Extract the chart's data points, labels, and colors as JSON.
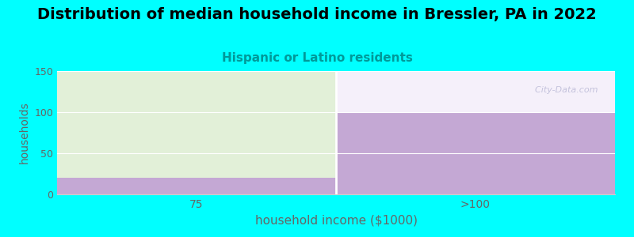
{
  "title": "Distribution of median household income in Bressler, PA in 2022",
  "subtitle": "Hispanic or Latino residents",
  "xlabel": "household income ($1000)",
  "ylabel": "households",
  "categories": [
    "75",
    ">100"
  ],
  "values": [
    20,
    100
  ],
  "bar_max": 150,
  "ylim": [
    0,
    150
  ],
  "yticks": [
    0,
    50,
    100,
    150
  ],
  "background_color": "#00FFFF",
  "plot_bg_color": "#FFFFFF",
  "bar_color": "#C4A8D4",
  "bar_bg_color_left": "#E2F0D8",
  "bar_bg_color_right": "#F5F0FA",
  "title_fontsize": 14,
  "subtitle_fontsize": 11,
  "subtitle_color": "#009999",
  "xlabel_fontsize": 11,
  "ylabel_fontsize": 10,
  "tick_color": "#666666",
  "watermark": "  City-Data.com"
}
